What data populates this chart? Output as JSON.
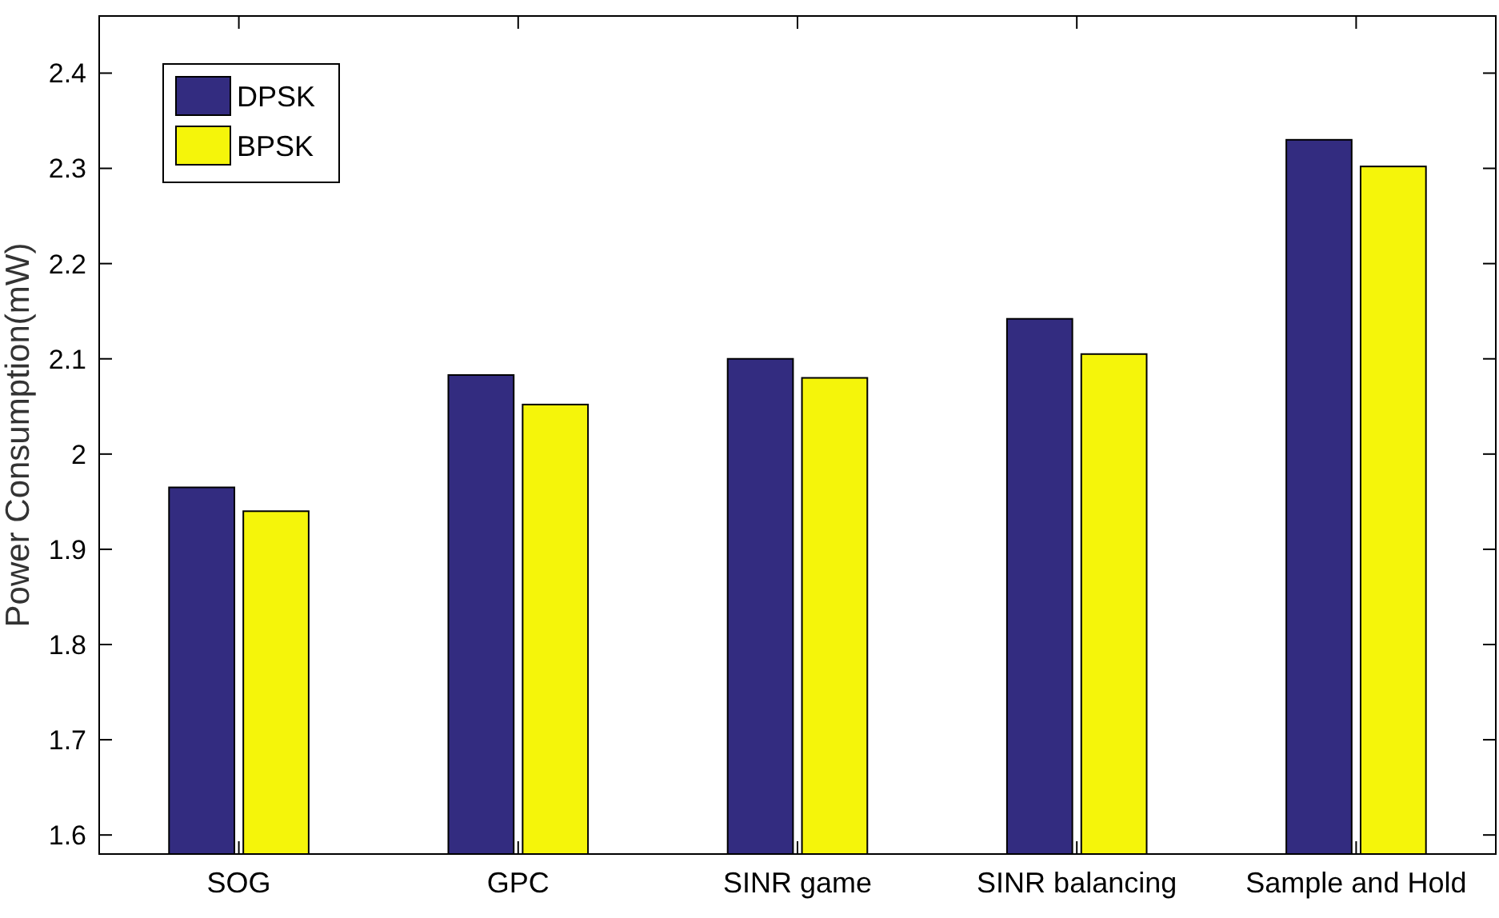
{
  "chart_data": {
    "type": "bar",
    "ylabel": "Power Consumption(mW)",
    "categories": [
      "SOG",
      "GPC",
      "SINR game",
      "SINR balancing",
      "Sample and Hold"
    ],
    "series": [
      {
        "name": "DPSK",
        "color": "#332c80",
        "values": [
          1.965,
          2.083,
          2.1,
          2.142,
          2.33
        ]
      },
      {
        "name": "BPSK",
        "color": "#f5f50a",
        "values": [
          1.94,
          2.052,
          2.08,
          2.105,
          2.302
        ]
      }
    ],
    "ylim": [
      1.58,
      2.46
    ],
    "yticks": [
      1.6,
      1.7,
      1.8,
      1.9,
      2,
      2.1,
      2.2,
      2.3,
      2.4
    ],
    "legend": "top left",
    "grid": false
  }
}
